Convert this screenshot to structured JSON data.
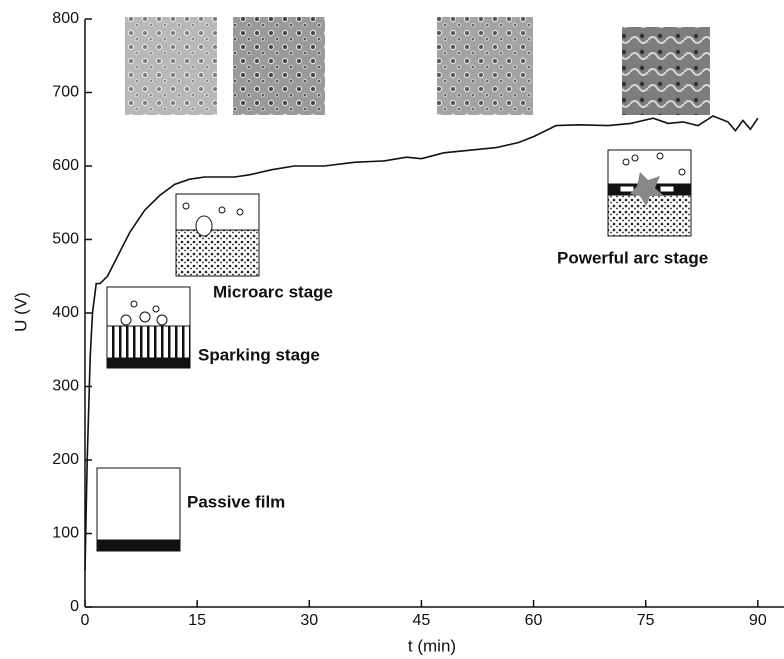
{
  "chart_data": {
    "type": "line",
    "xlabel": "t (min)",
    "ylabel": "U (V)",
    "x": [
      0,
      0.3,
      0.7,
      1,
      1.5,
      2,
      3,
      4,
      5,
      6,
      8,
      10,
      12,
      14,
      16,
      20,
      22,
      25,
      28,
      32,
      36,
      40,
      43,
      45,
      48,
      52,
      55,
      58,
      60,
      63,
      66,
      70,
      73,
      76,
      78,
      80,
      82,
      84,
      86,
      87,
      88,
      89,
      90
    ],
    "values": [
      50,
      200,
      340,
      400,
      440,
      440,
      450,
      470,
      490,
      510,
      540,
      560,
      575,
      582,
      585,
      585,
      588,
      595,
      600,
      600,
      605,
      607,
      612,
      610,
      618,
      622,
      625,
      632,
      640,
      655,
      656,
      655,
      658,
      665,
      658,
      660,
      655,
      668,
      660,
      648,
      662,
      650,
      665
    ],
    "color": "#111111",
    "xlim": [
      0,
      93.5
    ],
    "ylim": [
      0,
      800
    ],
    "xticks": [
      0,
      15,
      30,
      45,
      60,
      75,
      90
    ],
    "yticks": [
      0,
      100,
      200,
      300,
      400,
      500,
      600,
      700,
      800
    ],
    "annotations": [
      "Passive film",
      "Sparking stage",
      "Microarc stage",
      "Powerful arc stage"
    ]
  }
}
